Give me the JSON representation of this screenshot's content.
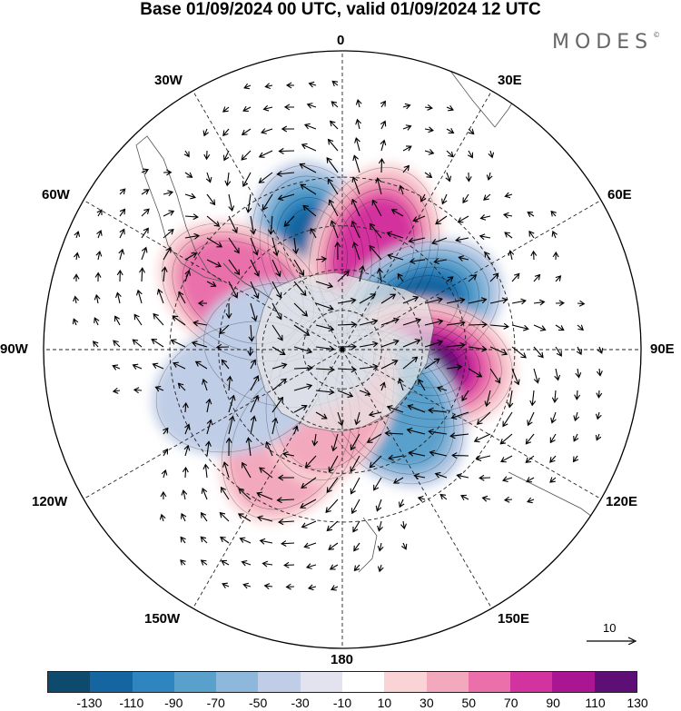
{
  "title": "Base 01/09/2024 00 UTC, valid 01/09/2024 12 UTC",
  "brand": "MODES",
  "brand_mark": "©",
  "longitude_labels": {
    "top": "0",
    "right_top": "30E",
    "right_upper": "60E",
    "right": "90E",
    "right_lower": "120E",
    "right_bottom": "150E",
    "bottom": "180",
    "left_bottom": "150W",
    "left_lower": "120W",
    "left": "90W",
    "left_upper": "60W",
    "left_top": "30W"
  },
  "reference_vector": {
    "label": "10"
  },
  "colorbar": {
    "ticks": [
      "-130",
      "-110",
      "-90",
      "-70",
      "-50",
      "-30",
      "-10",
      "10",
      "30",
      "50",
      "70",
      "90",
      "110",
      "130"
    ],
    "colors": [
      "#0d4a6e",
      "#1565a0",
      "#2f85bf",
      "#5aa0cc",
      "#8eb8db",
      "#c0cde6",
      "#e3e3f0",
      "#ffffff",
      "#f9d3d6",
      "#f3a9bd",
      "#ea6fab",
      "#d3339e",
      "#aa1592",
      "#5d0f76"
    ]
  },
  "anomaly_cells": [
    {
      "lon": -15,
      "lat": -52,
      "sign": "negative",
      "level": 5
    },
    {
      "lon": 18,
      "lat": -52,
      "sign": "positive",
      "level": 4
    },
    {
      "lon": 62,
      "lat": -58,
      "sign": "negative",
      "level": 5
    },
    {
      "lon": 100,
      "lat": -58,
      "sign": "positive",
      "level": 6
    },
    {
      "lon": 140,
      "lat": -62,
      "sign": "negative",
      "level": 3
    },
    {
      "lon": -60,
      "lat": -48,
      "sign": "positive",
      "level": 3
    },
    {
      "lon": -150,
      "lat": -52,
      "sign": "positive",
      "level": 2
    },
    {
      "lon": -165,
      "lat": -72,
      "sign": "positive",
      "level": 2
    },
    {
      "lon": -110,
      "lat": -50,
      "sign": "negative",
      "level": 1
    },
    {
      "lon": -85,
      "lat": -70,
      "sign": "negative",
      "level": 1
    }
  ]
}
